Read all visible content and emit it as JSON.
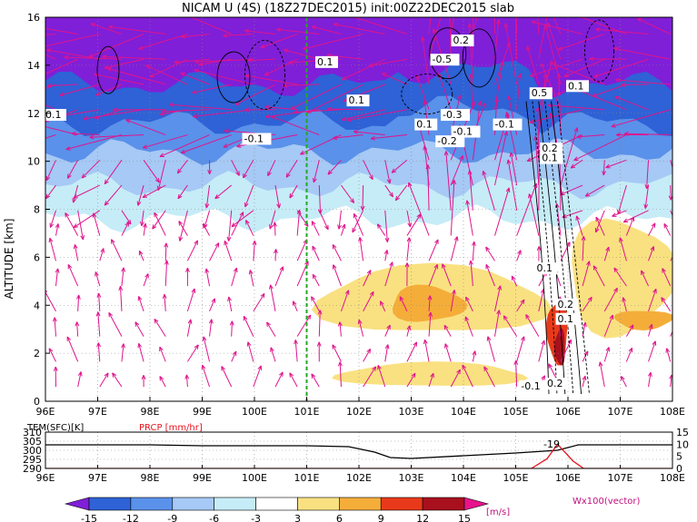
{
  "title": "NICAM U (4S) (18Z27DEC2015) init:00Z22DEC2015 slab",
  "chart_data": [
    {
      "type": "heatmap",
      "ylabel": "ALTITUDE [km]",
      "x_ticks": [
        "96E",
        "97E",
        "98E",
        "99E",
        "100E",
        "101E",
        "102E",
        "103E",
        "104E",
        "105E",
        "106E",
        "107E",
        "108E"
      ],
      "y_ticks": [
        "0",
        "2",
        "4",
        "6",
        "8",
        "10",
        "12",
        "14",
        "16"
      ],
      "xlim": [
        96,
        108
      ],
      "ylim": [
        0,
        16
      ],
      "grid": true,
      "marker_line_lon": 101,
      "bands": [
        {
          "level": -15,
          "color": "#7f1fd8",
          "y0": 13.2,
          "y1": 16
        },
        {
          "level": -12,
          "color": "#2e62d6",
          "y0": 11.6,
          "y1": 13.2
        },
        {
          "level": -9,
          "color": "#5a91ea",
          "y0": 10.4,
          "y1": 11.6
        },
        {
          "level": -6,
          "color": "#a6c9f5",
          "y0": 9.0,
          "y1": 10.4
        },
        {
          "level": -3,
          "color": "#c6ecf7",
          "y0": 7.6,
          "y1": 9.0
        }
      ],
      "warm_regions": [
        {
          "level": 3,
          "x0": 101.2,
          "x1": 105.6,
          "y0": 2.8,
          "y1": 5.6,
          "color": "#f9e181"
        },
        {
          "level": 6,
          "x0": 102.6,
          "x1": 104.0,
          "y0": 3.3,
          "y1": 4.8,
          "color": "#f5ad3a"
        },
        {
          "level": 3,
          "x0": 106.0,
          "x1": 108.0,
          "y0": 2.8,
          "y1": 7.6,
          "color": "#f9e181"
        },
        {
          "level": 6,
          "x0": 106.9,
          "x1": 108.0,
          "y0": 3.0,
          "y1": 3.8,
          "color": "#f5ad3a"
        },
        {
          "level": 9,
          "x0": 105.6,
          "x1": 106.0,
          "y0": 1.6,
          "y1": 4.2,
          "color": "#e83a1a"
        },
        {
          "level": 15,
          "x0": 105.75,
          "x1": 105.95,
          "y0": 1.5,
          "y1": 3.0,
          "color": "#a8101d"
        },
        {
          "level": 3,
          "x0": 101.6,
          "x1": 105.2,
          "y0": 0.6,
          "y1": 1.6,
          "color": "#f9e181"
        }
      ],
      "contour_labels": [
        {
          "text": "0.1",
          "x": 96.0,
          "y": 11.8
        },
        {
          "text": "0.1",
          "x": 101.2,
          "y": 14.0
        },
        {
          "text": "0.2",
          "x": 103.8,
          "y": 14.9
        },
        {
          "text": "-0.5",
          "x": 103.4,
          "y": 14.1
        },
        {
          "text": "0.1",
          "x": 101.8,
          "y": 12.4
        },
        {
          "text": "-0.1",
          "x": 99.8,
          "y": 10.8
        },
        {
          "text": "-0.3",
          "x": 103.6,
          "y": 11.8
        },
        {
          "text": "0.1",
          "x": 103.1,
          "y": 11.4
        },
        {
          "text": "-0.1",
          "x": 103.8,
          "y": 11.1
        },
        {
          "text": "-0.1",
          "x": 104.6,
          "y": 11.4
        },
        {
          "text": "-0.2",
          "x": 103.5,
          "y": 10.7
        },
        {
          "text": "0.5",
          "x": 105.3,
          "y": 12.7
        },
        {
          "text": "0.1",
          "x": 106.0,
          "y": 13.0
        },
        {
          "text": "0.2",
          "x": 105.5,
          "y": 10.4
        },
        {
          "text": "0.1",
          "x": 105.5,
          "y": 10.0
        },
        {
          "text": "0.1",
          "x": 105.4,
          "y": 5.4
        },
        {
          "text": "0.2",
          "x": 105.8,
          "y": 3.9
        },
        {
          "text": "0.1",
          "x": 105.8,
          "y": 3.3
        },
        {
          "text": "-0.1",
          "x": 105.1,
          "y": 0.5
        },
        {
          "text": "0.2",
          "x": 105.6,
          "y": 0.6
        }
      ]
    },
    {
      "type": "line",
      "ylabel_left": "TEM(SFC)[K]",
      "ylabel_right": "PRCP [mm/hr]",
      "left_ticks": [
        "290",
        "295",
        "300",
        "305",
        "310"
      ],
      "right_ticks": [
        "0",
        "5",
        "10",
        "15"
      ],
      "left_ylim": [
        290,
        310
      ],
      "right_ylim": [
        0,
        15
      ],
      "x_ticks": [
        "96E",
        "97E",
        "98E",
        "99E",
        "100E",
        "101E",
        "102E",
        "103E",
        "104E",
        "105E",
        "106E",
        "107E",
        "108E"
      ],
      "xlim": [
        96,
        108
      ],
      "annotation": "-19",
      "series": [
        {
          "name": "TEM(SFC)[K]",
          "color": "#000000",
          "x": [
            96,
            97,
            98,
            99,
            100,
            101,
            101.8,
            102.3,
            102.6,
            103.0,
            104.0,
            105.0,
            105.8,
            106.2,
            107.0,
            108.0
          ],
          "y": [
            303,
            303,
            303,
            302.5,
            302.5,
            302.5,
            302,
            299,
            296,
            295.5,
            297,
            298.5,
            300,
            303,
            303,
            303
          ]
        },
        {
          "name": "PRCP [mm/hr]",
          "color": "#e8141e",
          "x": [
            96,
            105.3,
            105.6,
            105.8,
            106.1,
            106.3,
            108
          ],
          "y": [
            0,
            0,
            4,
            10,
            3,
            0,
            0
          ]
        }
      ]
    },
    {
      "type": "colorbar",
      "unit": "[m/s]",
      "levels": [
        "-15",
        "-12",
        "-9",
        "-6",
        "-3",
        "3",
        "6",
        "9",
        "12",
        "15"
      ],
      "colors": [
        "#7f1fd8",
        "#2e62d6",
        "#5a91ea",
        "#a6c9f5",
        "#c6ecf7",
        "#ffffff",
        "#f9e181",
        "#f5ad3a",
        "#e83a1a",
        "#a8101d",
        "#e8148c"
      ],
      "vector_label": "Wx100(vector)"
    }
  ]
}
